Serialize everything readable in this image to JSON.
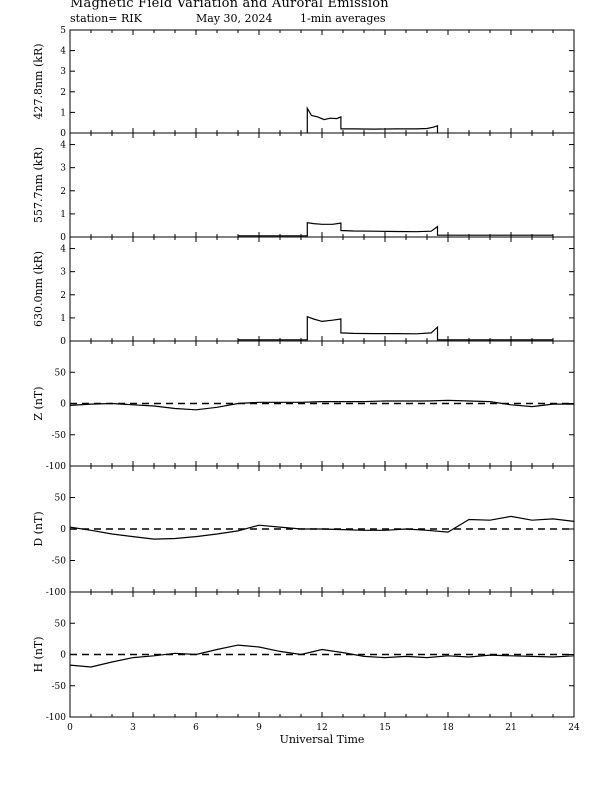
{
  "header": {
    "title": "Magnetic Field Variation and Auroral Emission",
    "station": "station= RIK",
    "date": "May 30, 2024",
    "averaging": "1-min averages"
  },
  "chart_data": [
    {
      "type": "line",
      "ylabel": "427.8nm (kR)",
      "xlabel": "",
      "xlim": [
        0,
        24
      ],
      "ylim": [
        0,
        5
      ],
      "yticks": [
        "0",
        "1",
        "2",
        "3",
        "4",
        "5"
      ],
      "grid": false,
      "zero_line": false,
      "series": [
        {
          "x": [
            11.3,
            11.3,
            11.5,
            11.8,
            12.1,
            12.4,
            12.7,
            12.9,
            12.9,
            13.5,
            14.5,
            15.5,
            16.5,
            17.0,
            17.3,
            17.5,
            17.5
          ],
          "y": [
            0,
            1.2,
            0.85,
            0.78,
            0.65,
            0.72,
            0.7,
            0.78,
            0.2,
            0.2,
            0.19,
            0.2,
            0.2,
            0.22,
            0.28,
            0.35,
            0
          ]
        }
      ]
    },
    {
      "type": "line",
      "ylabel": "557.7nm (kR)",
      "xlabel": "",
      "xlim": [
        0,
        24
      ],
      "ylim": [
        0,
        4.5
      ],
      "yticks": [
        "0",
        "1",
        "2",
        "3",
        "4"
      ],
      "grid": false,
      "zero_line": false,
      "series": [
        {
          "x": [
            8.0,
            11.3,
            11.3,
            11.6,
            12.0,
            12.5,
            12.9,
            12.9,
            13.5,
            14.5,
            15.5,
            16.5,
            17.2,
            17.5,
            17.5,
            23.0
          ],
          "y": [
            0.05,
            0.05,
            0.62,
            0.58,
            0.55,
            0.55,
            0.6,
            0.28,
            0.26,
            0.25,
            0.24,
            0.23,
            0.25,
            0.45,
            0.08,
            0.08
          ]
        }
      ]
    },
    {
      "type": "line",
      "ylabel": "630.0nm (kR)",
      "xlabel": "",
      "xlim": [
        0,
        24
      ],
      "ylim": [
        0,
        4.5
      ],
      "yticks": [
        "0",
        "1",
        "2",
        "3",
        "4"
      ],
      "grid": false,
      "zero_line": false,
      "series": [
        {
          "x": [
            8.0,
            11.3,
            11.3,
            11.6,
            12.0,
            12.5,
            12.9,
            12.9,
            13.5,
            14.5,
            15.5,
            16.5,
            17.2,
            17.5,
            17.5,
            23.0
          ],
          "y": [
            0.05,
            0.05,
            1.05,
            0.95,
            0.85,
            0.9,
            0.95,
            0.35,
            0.33,
            0.32,
            0.32,
            0.31,
            0.35,
            0.6,
            0.05,
            0.05
          ]
        }
      ]
    },
    {
      "type": "line",
      "ylabel": "Z (nT)",
      "xlabel": "",
      "xlim": [
        0,
        24
      ],
      "ylim": [
        -100,
        100
      ],
      "yticks": [
        "-100",
        "-50",
        "0",
        "50"
      ],
      "grid": false,
      "zero_line": true,
      "series": [
        {
          "x": [
            0,
            1,
            2,
            3,
            4,
            5,
            6,
            7,
            8,
            9,
            10,
            11,
            12,
            13,
            14,
            15,
            16,
            17,
            18,
            19,
            20,
            21,
            22,
            23,
            24
          ],
          "y": [
            -3,
            -1,
            0,
            -2,
            -4,
            -8,
            -10,
            -6,
            0,
            2,
            2,
            2,
            3,
            3,
            3,
            4,
            4,
            4,
            5,
            4,
            3,
            -2,
            -5,
            -1,
            -1
          ]
        }
      ]
    },
    {
      "type": "line",
      "ylabel": "D (nT)",
      "xlabel": "",
      "xlim": [
        0,
        24
      ],
      "ylim": [
        -100,
        100
      ],
      "yticks": [
        "-100",
        "-50",
        "0",
        "50"
      ],
      "grid": false,
      "zero_line": true,
      "series": [
        {
          "x": [
            0,
            1,
            2,
            3,
            4,
            5,
            6,
            7,
            8,
            9,
            10,
            11,
            12,
            13,
            14,
            15,
            16,
            17,
            18,
            19,
            20,
            21,
            22,
            23,
            24
          ],
          "y": [
            3,
            -2,
            -8,
            -12,
            -16,
            -15,
            -12,
            -8,
            -3,
            6,
            3,
            0,
            0,
            -1,
            -2,
            -2,
            0,
            -2,
            -5,
            15,
            14,
            20,
            14,
            16,
            12
          ]
        }
      ]
    },
    {
      "type": "line",
      "ylabel": "H (nT)",
      "xlabel": "Universal Time",
      "xlim": [
        0,
        24
      ],
      "ylim": [
        -100,
        100
      ],
      "yticks": [
        "-100",
        "-50",
        "0",
        "50"
      ],
      "xticks": [
        "0",
        "3",
        "6",
        "9",
        "12",
        "15",
        "18",
        "21",
        "24"
      ],
      "grid": false,
      "zero_line": true,
      "series": [
        {
          "x": [
            0,
            1,
            2,
            3,
            4,
            5,
            6,
            7,
            8,
            9,
            10,
            11,
            12,
            13,
            14,
            15,
            16,
            17,
            18,
            19,
            20,
            21,
            22,
            23,
            24
          ],
          "y": [
            -17,
            -20,
            -12,
            -5,
            -2,
            2,
            0,
            8,
            15,
            12,
            5,
            0,
            8,
            3,
            -3,
            -5,
            -3,
            -5,
            -2,
            -4,
            -1,
            -2,
            -3,
            -4,
            -2
          ]
        }
      ]
    }
  ]
}
